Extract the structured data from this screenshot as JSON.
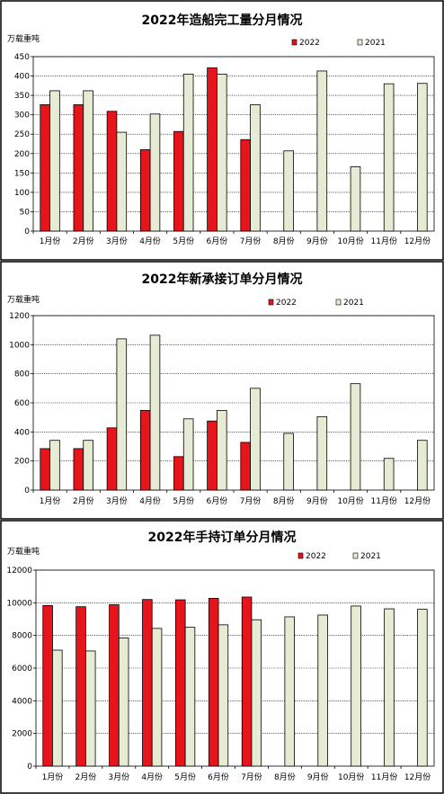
{
  "legend_labels": [
    "2022",
    "2021"
  ],
  "colors": {
    "s2022": "#e8141b",
    "s2021": "#e5ecd3",
    "stroke": "#000000"
  },
  "chart_data": [
    {
      "type": "bar",
      "title": "2022年造船完工量分月情况",
      "ylabel": "万载重吨",
      "categories": [
        "1月份",
        "2月份",
        "3月份",
        "4月份",
        "5月份",
        "6月份",
        "7月份",
        "8月份",
        "9月份",
        "10月份",
        "11月份",
        "12月份"
      ],
      "ylim": [
        0,
        450
      ],
      "yticks": [
        0,
        50,
        100,
        150,
        200,
        250,
        300,
        350,
        400,
        450
      ],
      "series": [
        {
          "name": "2022",
          "values": [
            326,
            326,
            309,
            210,
            257,
            421,
            236,
            null,
            null,
            null,
            null,
            null
          ]
        },
        {
          "name": "2021",
          "values": [
            362,
            362,
            255,
            302,
            405,
            405,
            326,
            207,
            413,
            166,
            380,
            381
          ]
        }
      ],
      "legend": "top-right",
      "grid": true
    },
    {
      "type": "bar",
      "title": "2022年新承接订单分月情况",
      "ylabel": "万载重吨",
      "categories": [
        "1月份",
        "2月份",
        "3月份",
        "4月份",
        "5月份",
        "6月份",
        "7月份",
        "8月份",
        "9月份",
        "10月份",
        "11月份",
        "12月份"
      ],
      "ylim": [
        0,
        1200
      ],
      "yticks": [
        0,
        200,
        400,
        600,
        800,
        1000,
        1200
      ],
      "series": [
        {
          "name": "2022",
          "values": [
            285,
            285,
            428,
            548,
            230,
            475,
            328,
            null,
            null,
            null,
            null,
            null
          ]
        },
        {
          "name": "2021",
          "values": [
            342,
            342,
            1040,
            1065,
            490,
            548,
            700,
            390,
            505,
            732,
            218,
            342
          ]
        }
      ],
      "legend": "top-right",
      "grid": true
    },
    {
      "type": "bar",
      "title": "2022年手持订单分月情况",
      "ylabel": "万载重吨",
      "categories": [
        "1月份",
        "2月份",
        "3月份",
        "4月份",
        "5月份",
        "6月份",
        "7月份",
        "8月份",
        "9月份",
        "10月份",
        "11月份",
        "12月份"
      ],
      "ylim": [
        0,
        12000
      ],
      "yticks": [
        0,
        2000,
        4000,
        6000,
        8000,
        10000,
        12000
      ],
      "series": [
        {
          "name": "2022",
          "values": [
            9830,
            9760,
            9880,
            10200,
            10180,
            10270,
            10350,
            null,
            null,
            null,
            null,
            null
          ]
        },
        {
          "name": "2021",
          "values": [
            7100,
            7050,
            7850,
            8430,
            8500,
            8650,
            8960,
            9140,
            9250,
            9800,
            9630,
            9600
          ]
        }
      ],
      "legend": "top-right",
      "grid": true
    }
  ]
}
